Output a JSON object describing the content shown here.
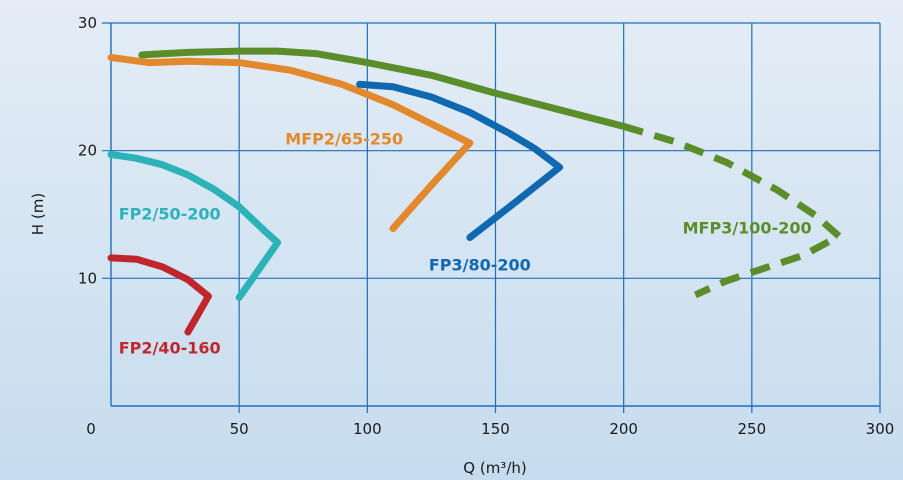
{
  "chart_data": {
    "type": "line",
    "xlabel": "Q (m³/h)",
    "ylabel": "H (m)",
    "xlim": [
      0,
      300
    ],
    "ylim": [
      0,
      30
    ],
    "x_ticks": [
      0,
      50,
      100,
      150,
      200,
      250,
      300
    ],
    "y_ticks": [
      10,
      20,
      30
    ],
    "grid": true,
    "colors": {
      "grid": "#1f6fb8",
      "FP2/40-160": "#c0272d",
      "FP2/50-200": "#2bb3b8",
      "MFP2/65-250": "#e3892d",
      "FP3/80-200": "#0f68b0",
      "MFP3/100-200": "#5b8e2b"
    },
    "series": [
      {
        "name": "FP2/40-160",
        "points": [
          [
            0,
            11.6
          ],
          [
            10,
            11.5
          ],
          [
            20,
            10.9
          ],
          [
            30,
            9.9
          ],
          [
            38,
            8.6
          ],
          [
            34,
            7.2
          ],
          [
            30,
            5.8
          ]
        ]
      },
      {
        "name": "FP2/50-200",
        "points": [
          [
            0,
            19.7
          ],
          [
            10,
            19.4
          ],
          [
            20,
            18.9
          ],
          [
            30,
            18.1
          ],
          [
            40,
            17.0
          ],
          [
            50,
            15.6
          ],
          [
            60,
            13.7
          ],
          [
            65,
            12.8
          ],
          [
            57,
            10.5
          ],
          [
            50,
            8.5
          ]
        ]
      },
      {
        "name": "MFP2/65-250",
        "points": [
          [
            0,
            27.3
          ],
          [
            15,
            26.9
          ],
          [
            30,
            27.0
          ],
          [
            50,
            26.9
          ],
          [
            70,
            26.3
          ],
          [
            90,
            25.2
          ],
          [
            110,
            23.6
          ],
          [
            125,
            22.1
          ],
          [
            140,
            20.6
          ],
          [
            125,
            17.3
          ],
          [
            110,
            13.9
          ]
        ]
      },
      {
        "name": "FP3/80-200",
        "points": [
          [
            97,
            25.2
          ],
          [
            110,
            25.0
          ],
          [
            125,
            24.2
          ],
          [
            140,
            23.0
          ],
          [
            155,
            21.4
          ],
          [
            165,
            20.2
          ],
          [
            175,
            18.7
          ],
          [
            158,
            16.0
          ],
          [
            140,
            13.2
          ]
        ]
      },
      {
        "name": "MFP3/100-200",
        "points": [
          [
            12,
            27.5
          ],
          [
            30,
            27.7
          ],
          [
            50,
            27.8
          ],
          [
            65,
            27.8
          ],
          [
            80,
            27.6
          ],
          [
            100,
            26.9
          ],
          [
            125,
            25.9
          ],
          [
            150,
            24.5
          ],
          [
            175,
            23.2
          ],
          [
            200,
            21.9
          ]
        ],
        "dashed_continuation": [
          [
            200,
            21.9
          ],
          [
            220,
            20.7
          ],
          [
            240,
            19.1
          ],
          [
            260,
            16.9
          ],
          [
            275,
            14.9
          ],
          [
            284,
            13.3
          ],
          [
            270,
            11.8
          ],
          [
            255,
            10.8
          ],
          [
            240,
            9.8
          ],
          [
            228,
            8.7
          ]
        ]
      }
    ],
    "annotations": [
      {
        "text": "FP2/40-160",
        "series": "FP2/40-160",
        "x": 3,
        "y": 4.1
      },
      {
        "text": "FP2/50-200",
        "series": "FP2/50-200",
        "x": 3,
        "y": 14.6
      },
      {
        "text": "MFP2/65-250",
        "series": "MFP2/65-250",
        "x": 68,
        "y": 20.5
      },
      {
        "text": "FP3/80-200",
        "series": "FP3/80-200",
        "x": 124,
        "y": 10.6
      },
      {
        "text": "MFP3/100-200",
        "series": "MFP3/100-200",
        "x": 223,
        "y": 13.5
      }
    ]
  }
}
